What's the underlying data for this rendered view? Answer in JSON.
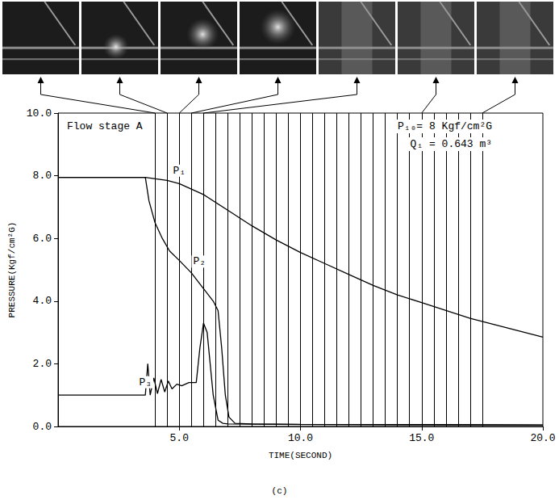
{
  "chart_data": {
    "type": "line",
    "caption": "(c)",
    "annotations": [
      "Flow stage A",
      "P₁₀= 8 Kgf/cm²G",
      "Q₁ = 0.643 m³"
    ],
    "x_label": "TIME(SECOND)",
    "y_label": "PRESSURE(Kgf/cm²G)",
    "xlim": [
      0,
      20
    ],
    "xticks": [
      {
        "value": 5,
        "label": "5.0"
      },
      {
        "value": 10,
        "label": "10.0"
      },
      {
        "value": 15,
        "label": "15.0"
      },
      {
        "value": 20,
        "label": "20.0"
      }
    ],
    "ylim": [
      0,
      10
    ],
    "yticks": [
      {
        "value": 0,
        "label": "0.0"
      },
      {
        "value": 2,
        "label": "2.0"
      },
      {
        "value": 4,
        "label": "4.0"
      },
      {
        "value": 6,
        "label": "6.0"
      },
      {
        "value": 8,
        "label": "8.0"
      },
      {
        "value": 10,
        "label": "10.0"
      }
    ],
    "grid": false,
    "frame_times": [
      4,
      4.5,
      5,
      5.5,
      6,
      6.5,
      7,
      7.5,
      8,
      8.5,
      9,
      9.5,
      10,
      10.5,
      11,
      11.5,
      12,
      12.5,
      13,
      13.5,
      14,
      14.5,
      15,
      15.5,
      16,
      16.5,
      17,
      17.5
    ],
    "photo_times": [
      4,
      4.5,
      5,
      5.5,
      6,
      15,
      17.5
    ],
    "series": [
      {
        "name": "P₁",
        "color": "#000000",
        "marker": "none",
        "line_style": "solid",
        "x": [
          0,
          3.6,
          4.5,
          5,
          6,
          7,
          8,
          9,
          10,
          11,
          12,
          13,
          14,
          15,
          16,
          17,
          18,
          19,
          20
        ],
        "values": [
          7.95,
          7.95,
          7.85,
          7.75,
          7.4,
          6.9,
          6.4,
          5.95,
          5.55,
          5.2,
          4.85,
          4.5,
          4.2,
          3.95,
          3.7,
          3.45,
          3.25,
          3.05,
          2.85
        ]
      },
      {
        "name": "P₂",
        "color": "#000000",
        "marker": "none",
        "line_style": "solid",
        "x": [
          0,
          3.6,
          3.75,
          4,
          4.3,
          4.6,
          5,
          5.5,
          6,
          6.4,
          6.6,
          6.75,
          6.9,
          7.05,
          7.3,
          8,
          10,
          15,
          20
        ],
        "values": [
          7.95,
          7.95,
          7.2,
          6.5,
          6.0,
          5.6,
          5.3,
          4.9,
          4.4,
          4.0,
          3.7,
          2.5,
          1.0,
          0.3,
          0.1,
          0.08,
          0.07,
          0.06,
          0.05
        ]
      },
      {
        "name": "P₃",
        "color": "#000000",
        "marker": "none",
        "line_style": "solid",
        "x": [
          0,
          3.6,
          3.7,
          3.8,
          3.95,
          4.1,
          4.25,
          4.4,
          4.55,
          4.7,
          4.9,
          5.1,
          5.4,
          5.7,
          5.85,
          6,
          6.15,
          6.4,
          6.6,
          6.8,
          7,
          10,
          20
        ],
        "values": [
          1.0,
          1.0,
          2.0,
          1.0,
          1.55,
          1.05,
          1.5,
          1.1,
          1.45,
          1.2,
          1.35,
          1.3,
          1.4,
          1.4,
          2.5,
          3.3,
          3.0,
          1.0,
          0.2,
          0.1,
          0.08,
          0.06,
          0.04
        ]
      }
    ]
  }
}
